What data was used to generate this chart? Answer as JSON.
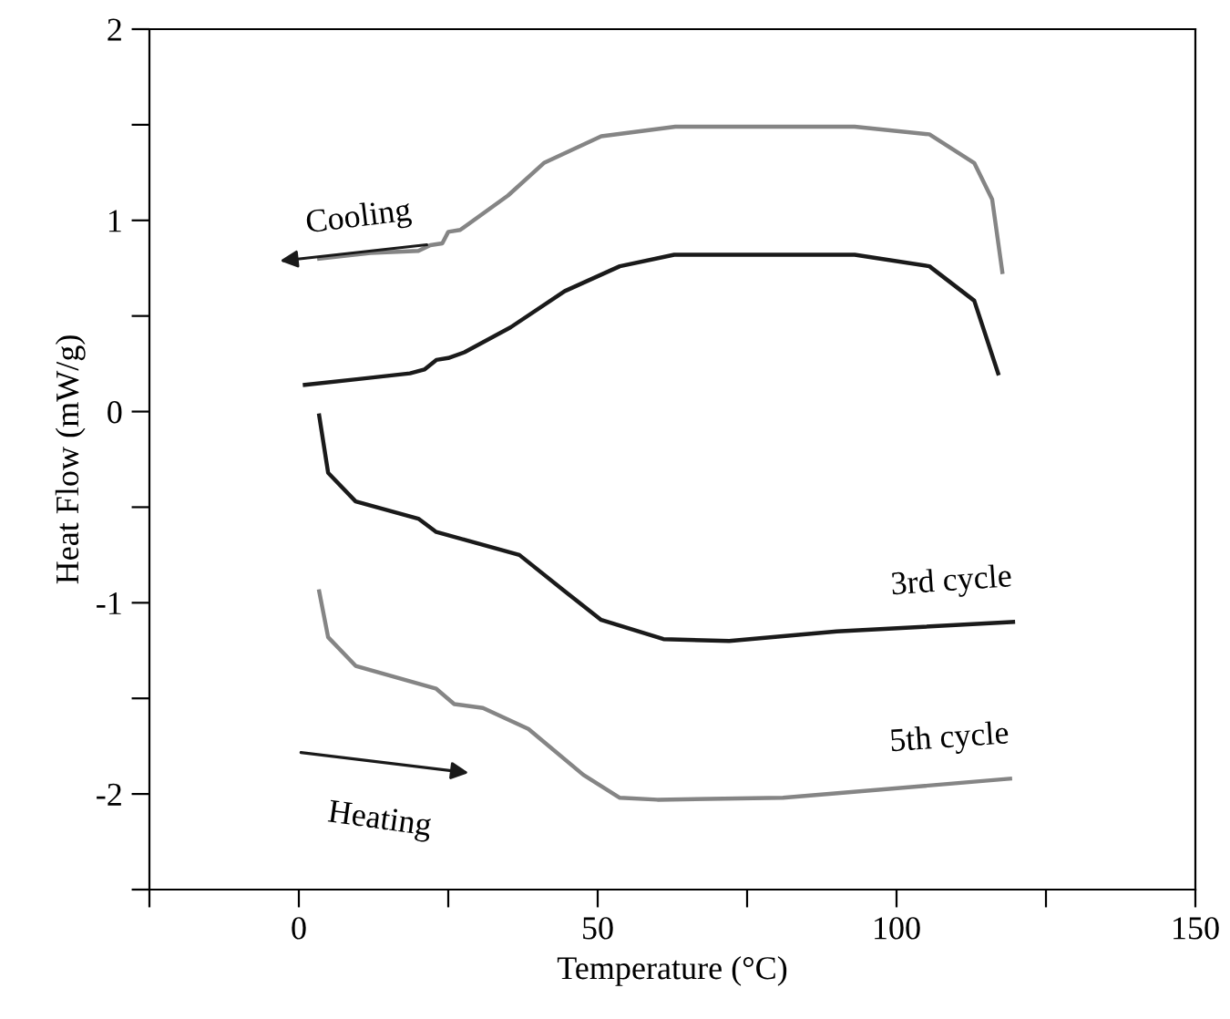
{
  "chart_data": {
    "type": "line",
    "xlabel": "Temperature (°C)",
    "ylabel": "Heat Flow (mW/g)",
    "xlim": [
      -25,
      150
    ],
    "ylim": [
      -2.5,
      2
    ],
    "xticks": [
      {
        "value": -25,
        "label": null
      },
      0,
      {
        "value": 25,
        "label": null
      },
      50,
      {
        "value": 75,
        "label": null
      },
      100,
      {
        "value": 125,
        "label": null
      },
      150
    ],
    "yticks": [
      {
        "value": -2.5,
        "label": null
      },
      -2,
      {
        "value": -1.5,
        "label": null
      },
      -1,
      {
        "value": -0.5,
        "label": null
      },
      0,
      {
        "value": 0.5,
        "label": null
      },
      1,
      {
        "value": 1.5,
        "label": null
      },
      2
    ],
    "grid": false,
    "legend": false,
    "marker": "none",
    "line_style": "solid",
    "series": [
      {
        "color": "#858585",
        "x": [
          3.4,
          12,
          20,
          22,
          24,
          25,
          27,
          35,
          41,
          50.6,
          63,
          93,
          105.5,
          113,
          116,
          117.7
        ],
        "values": [
          0.8,
          0.83,
          0.84,
          0.87,
          0.88,
          0.94,
          0.95,
          1.13,
          1.3,
          1.44,
          1.49,
          1.49,
          1.45,
          1.3,
          1.11,
          0.73
        ]
      },
      {
        "color": "#1a1a1a",
        "x": [
          1,
          10,
          18.6,
          21,
          23,
          25,
          27.7,
          35.4,
          44.5,
          53.7,
          62.8,
          93,
          105.5,
          113,
          117
        ],
        "values": [
          0.14,
          0.17,
          0.2,
          0.22,
          0.27,
          0.28,
          0.31,
          0.44,
          0.63,
          0.76,
          0.82,
          0.82,
          0.76,
          0.58,
          0.2
        ]
      },
      {
        "color": "#1a1a1a",
        "x": [
          3.4,
          4.9,
          9.5,
          20,
          23,
          27.7,
          36.9,
          44.5,
          50.6,
          61,
          72,
          90,
          119.5
        ],
        "values": [
          -0.02,
          -0.32,
          -0.47,
          -0.56,
          -0.63,
          -0.67,
          -0.75,
          -0.94,
          -1.09,
          -1.19,
          -1.2,
          -1.15,
          -1.1
        ]
      },
      {
        "color": "#858585",
        "x": [
          3.4,
          4.9,
          9.5,
          23,
          26,
          30.8,
          38.4,
          47.6,
          53.7,
          60,
          81,
          119
        ],
        "values": [
          -0.94,
          -1.18,
          -1.33,
          -1.45,
          -1.53,
          -1.55,
          -1.66,
          -1.9,
          -2.02,
          -2.03,
          -2.02,
          -1.92
        ]
      }
    ],
    "annotations": [
      "Cooling",
      "Heating",
      {
        "text": "3rd cycle",
        "x": 119.5,
        "y": -1.1
      },
      {
        "text": "5th cycle",
        "x": 119,
        "y": -1.92
      }
    ]
  }
}
